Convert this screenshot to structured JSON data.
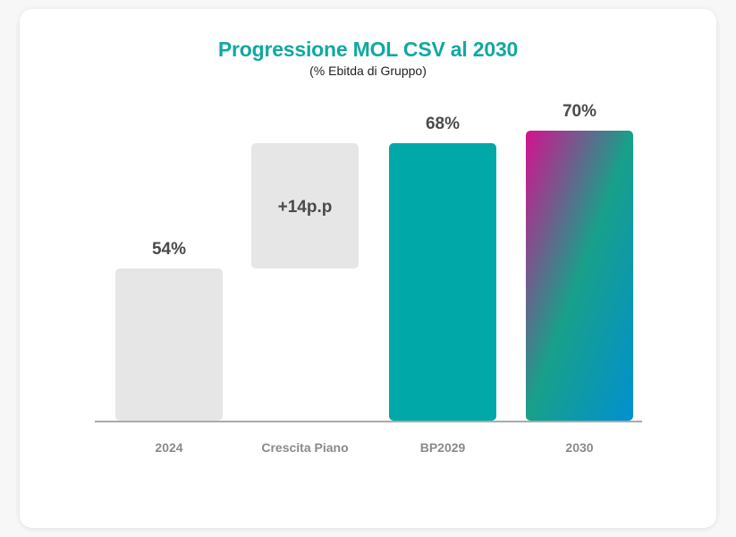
{
  "chart_data": {
    "type": "bar",
    "subtype": "waterfall",
    "title": "Progressione MOL CSV al 2030",
    "subtitle": "(% Ebitda di Gruppo)",
    "xlabel": "",
    "ylabel": "",
    "categories": [
      "2024",
      "Crescita Piano",
      "BP2029",
      "2030"
    ],
    "values": [
      54,
      14,
      68,
      70
    ],
    "bases": [
      0,
      54,
      0,
      0
    ],
    "labels": [
      "54%",
      "+14p.p",
      "68%",
      "70%"
    ],
    "label_positions": [
      "above",
      "inside",
      "above",
      "above"
    ],
    "styles": [
      "grey",
      "grey",
      "teal",
      "gradient"
    ],
    "colors": {
      "grey": "#e6e6e6",
      "teal": "#00a8a8",
      "gradient": [
        "#d4118f",
        "#18a08a",
        "#0190d0"
      ],
      "title": "#12a8a1",
      "axis": "#8e8e8e"
    },
    "grid": false,
    "legend": "none"
  }
}
